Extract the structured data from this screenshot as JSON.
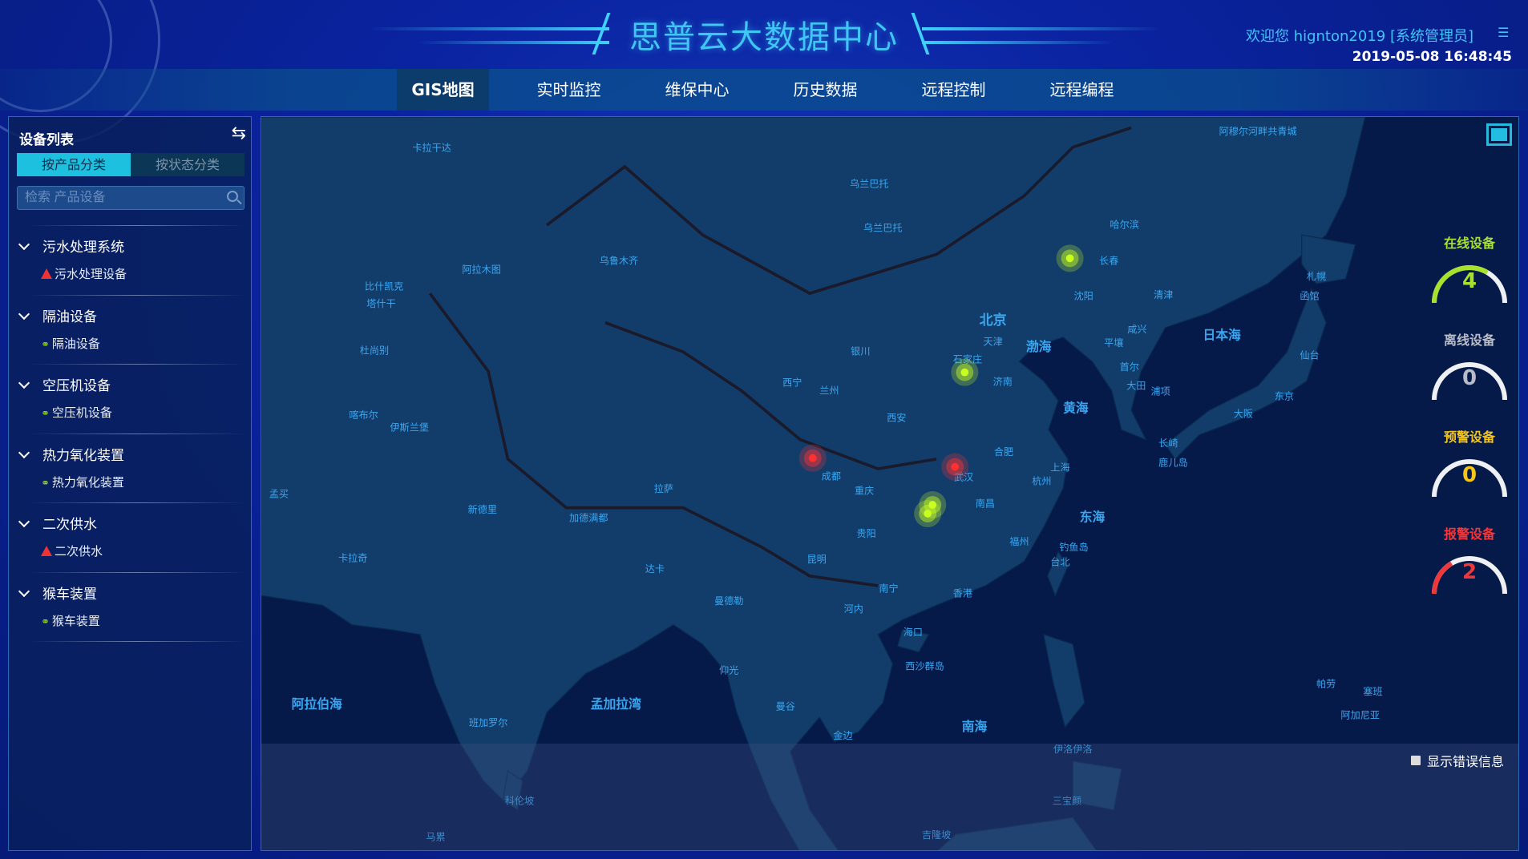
{
  "header": {
    "title": "思普云大数据中心",
    "welcome": "欢迎您  hignton2019 [系统管理员]",
    "datetime": "2019-05-08 16:48:45",
    "menu_icon": "list-icon"
  },
  "nav": {
    "tabs": [
      {
        "label": "GIS地图",
        "active": true
      },
      {
        "label": "实时监控"
      },
      {
        "label": "维保中心"
      },
      {
        "label": "历史数据"
      },
      {
        "label": "远程控制"
      },
      {
        "label": "远程编程"
      }
    ]
  },
  "sidebar": {
    "title": "设备列表",
    "swap_icon": "swap-arrows-icon",
    "filter_tabs": [
      {
        "label": "按产品分类",
        "active": true
      },
      {
        "label": "按状态分类"
      }
    ],
    "search_placeholder": "检索 产品设备",
    "groups": [
      {
        "label": "污水处理系统",
        "child": "污水处理设备",
        "status": "alarm"
      },
      {
        "label": "隔油设备",
        "child": "隔油设备",
        "status": "online"
      },
      {
        "label": "空压机设备",
        "child": "空压机设备",
        "status": "online"
      },
      {
        "label": "热力氧化装置",
        "child": "热力氧化装置",
        "status": "online"
      },
      {
        "label": "二次供水",
        "child": "二次供水",
        "status": "alarm"
      },
      {
        "label": "猴车装置",
        "child": "猴车装置",
        "status": "online"
      }
    ]
  },
  "map": {
    "labels": [
      "北京",
      "天津",
      "石家庄",
      "济南",
      "渤海",
      "黄海",
      "东海",
      "南海",
      "日本海",
      "上海",
      "杭州",
      "合肥",
      "武汉",
      "南昌",
      "福州",
      "台北",
      "香港",
      "南宁",
      "海口",
      "昆明",
      "贵阳",
      "重庆",
      "成都",
      "西安",
      "兰州",
      "西宁",
      "银川",
      "拉萨",
      "乌鲁木齐",
      "乌兰巴托",
      "哈尔滨",
      "长春",
      "沈阳",
      "平壤",
      "首尔",
      "大田",
      "浦项",
      "咸兴",
      "清津",
      "札幌",
      "函馆",
      "仙台",
      "东京",
      "大阪",
      "长崎",
      "鹿儿岛",
      "金边",
      "曼谷",
      "河内",
      "阿拉伯海",
      "孟加拉湾",
      "新德里",
      "加德满都",
      "达卡",
      "卡拉奇",
      "伊斯兰堡",
      "喀布尔",
      "阿拉木图",
      "塔什干",
      "杜尚别",
      "仰光",
      "曼德勒",
      "科伦坡",
      "钓鱼岛",
      "西沙群岛",
      "伊洛伊洛",
      "三宝颜",
      "阿穆尔河畔共青城",
      "卡拉干达",
      "乌兰巴托",
      "比什凯克",
      "孟买",
      "班加罗尔",
      "马累",
      "吉隆坡",
      "帕劳",
      "阿加尼亚",
      "塞班"
    ],
    "markers": [
      {
        "status": "online"
      },
      {
        "status": "online"
      },
      {
        "status": "alarm"
      },
      {
        "status": "alarm"
      },
      {
        "status": "online"
      },
      {
        "status": "online"
      }
    ],
    "show_errors_label": "显示错误信息",
    "show_errors_checked": false,
    "fullscreen_icon": "fullscreen-icon"
  },
  "stats": [
    {
      "label": "在线设备",
      "value": "4",
      "fraction": 0.67,
      "color": "#a6e22e"
    },
    {
      "label": "离线设备",
      "value": "0",
      "fraction": 0,
      "color": "#b8bcc8"
    },
    {
      "label": "预警设备",
      "value": "0",
      "fraction": 0,
      "color": "#f5c518"
    },
    {
      "label": "报警设备",
      "value": "2",
      "fraction": 0.33,
      "color": "#f0383a"
    }
  ],
  "colors": {
    "accent": "#3fc6f5",
    "land": "#123d6b",
    "sea": "#061a4a",
    "online": "#c8ff20",
    "alarm": "#ff3030"
  }
}
